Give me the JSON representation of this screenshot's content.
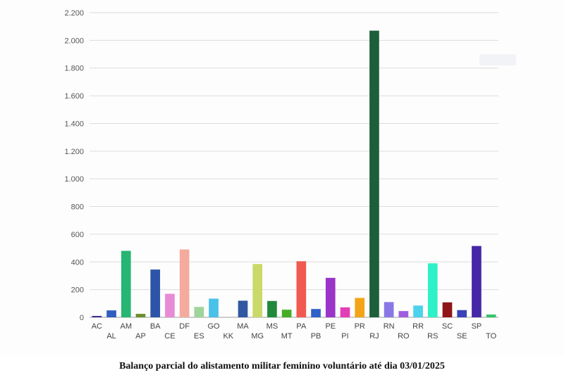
{
  "caption": "Balanço parcial do alistamento militar feminino voluntário até dia 03/01/2025",
  "chart_data": {
    "type": "bar",
    "title": "",
    "xlabel": "",
    "ylabel": "",
    "ylim": [
      0,
      2200
    ],
    "yticks": [
      0,
      200,
      400,
      600,
      800,
      1000,
      1200,
      1400,
      1600,
      1800,
      2000,
      2200
    ],
    "ytick_labels": [
      "0",
      "200",
      "400",
      "600",
      "800",
      "1.000",
      "1.200",
      "1.400",
      "1.600",
      "1.800",
      "2.000",
      "2.200"
    ],
    "grid": true,
    "legend": "none",
    "categories": [
      "AC",
      "AL",
      "AM",
      "AP",
      "BA",
      "CE",
      "DF",
      "ES",
      "GO",
      "KK",
      "MA",
      "MG",
      "MS",
      "MT",
      "PA",
      "PB",
      "PE",
      "PI",
      "PR",
      "RJ",
      "RN",
      "RO",
      "RR",
      "RS",
      "SC",
      "SE",
      "SP",
      "TO"
    ],
    "values": [
      10,
      50,
      480,
      25,
      345,
      170,
      490,
      75,
      135,
      0,
      120,
      385,
      118,
      55,
      405,
      60,
      285,
      72,
      140,
      2070,
      110,
      45,
      85,
      390,
      108,
      52,
      515,
      20
    ],
    "colors": [
      "#3a2f8f",
      "#2f5fbf",
      "#26b573",
      "#6c8f2e",
      "#2c55a8",
      "#e88bd6",
      "#f4aa9d",
      "#9fd49a",
      "#49c1e8",
      "#cccccc",
      "#3159a1",
      "#c9d96a",
      "#218a3a",
      "#45ad26",
      "#f05a50",
      "#2d62c8",
      "#9b34c9",
      "#e23fb6",
      "#f3a417",
      "#1d5e3b",
      "#8977e6",
      "#a05de0",
      "#4cd2eb",
      "#2ff1c7",
      "#8f1519",
      "#3a42b8",
      "#4527a7",
      "#32c36b"
    ]
  }
}
